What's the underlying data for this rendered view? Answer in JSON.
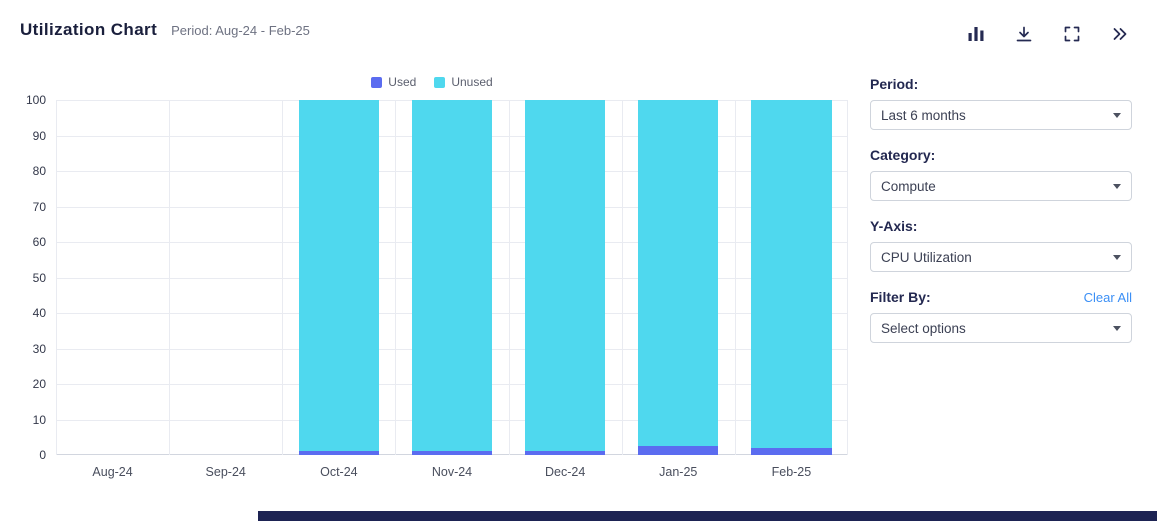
{
  "header": {
    "title": "Utilization Chart",
    "subtitle": "Period: Aug-24 - Feb-25",
    "icons": [
      "bar-chart-icon",
      "download-icon",
      "fullscreen-icon",
      "collapse-panel-icon"
    ]
  },
  "chart_data": {
    "type": "bar",
    "stacked": true,
    "title": "Utilization Chart",
    "categories": [
      "Aug-24",
      "Sep-24",
      "Oct-24",
      "Nov-24",
      "Dec-24",
      "Jan-25",
      "Feb-25"
    ],
    "series": [
      {
        "name": "Used",
        "color": "#5b6cf0",
        "values": [
          0,
          0,
          1,
          1,
          1,
          2.5,
          2
        ]
      },
      {
        "name": "Unused",
        "color": "#4fd8ee",
        "values": [
          0,
          0,
          99,
          99,
          99,
          97.5,
          98
        ]
      }
    ],
    "ylim": [
      0,
      100
    ],
    "y_ticks": [
      0,
      10,
      20,
      30,
      40,
      50,
      60,
      70,
      80,
      90,
      100
    ],
    "grid": true,
    "legend_position": "top"
  },
  "controls": {
    "period": {
      "label": "Period:",
      "value": "Last 6 months"
    },
    "category": {
      "label": "Category:",
      "value": "Compute"
    },
    "y_axis": {
      "label": "Y-Axis:",
      "value": "CPU Utilization"
    },
    "filter_by": {
      "label": "Filter By:",
      "clear_all": "Clear All",
      "value": "Select options"
    }
  },
  "colors": {
    "used": "#5b6cf0",
    "unused": "#4fd8ee",
    "title_text": "#1a1f3c",
    "link": "#3b8ff5",
    "footer": "#1d2353"
  }
}
